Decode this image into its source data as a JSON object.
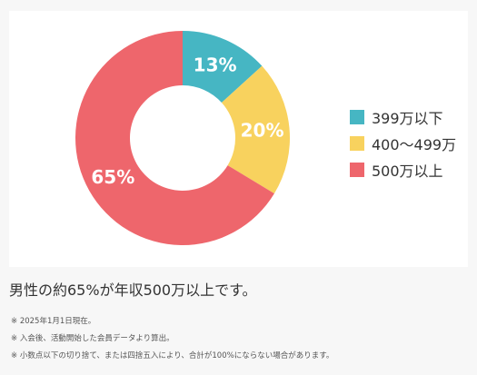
{
  "chart_data": {
    "type": "pie",
    "variant": "donut",
    "categories": [
      "399万以下",
      "400〜499万",
      "500万以上"
    ],
    "values": [
      13,
      20,
      65
    ],
    "value_labels": [
      "13%",
      "20%",
      "65%"
    ],
    "colors": [
      "#46b6c3",
      "#f8d25e",
      "#ee666c"
    ],
    "legend_position": "right"
  },
  "headline": "男性の約65%が年収500万以上です。",
  "notes": [
    "※ 2025年1月1日現在。",
    "※ 入会後、活動開始した会員データより算出。",
    "※ 小数点以下の切り捨て、または四捨五入により、合計が100%にならない場合があります。"
  ]
}
